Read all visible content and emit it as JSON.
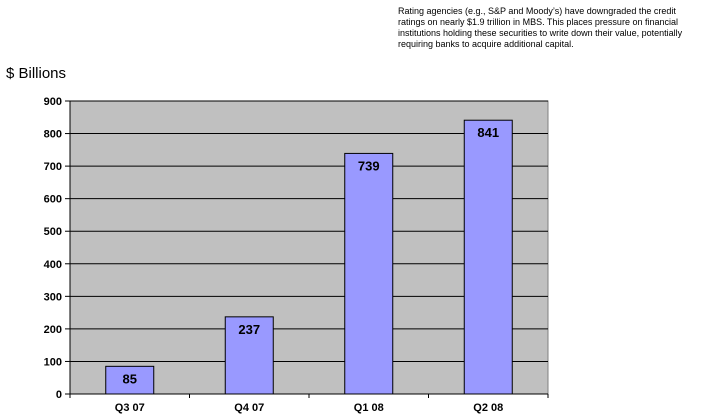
{
  "annotation": "Rating agencies (e.g., S&P and Moody’s) have downgraded the credit ratings on nearly $1.9 trillion in MBS.  This places pressure on financial institutions holding these securities to write down their value, potentially requiring banks to acquire additional capital.",
  "colors": {
    "plot_bg": "#c0c0c0",
    "bar_fill": "#9999ff",
    "bar_stroke": "#000000",
    "grid": "#000000"
  },
  "chart_data": {
    "type": "bar",
    "title": "",
    "xlabel": "",
    "ylabel": "$ Billions",
    "categories": [
      "Q3 07",
      "Q4 07",
      "Q1 08",
      "Q2 08"
    ],
    "values": [
      85,
      237,
      739,
      841
    ],
    "data_labels": [
      "85",
      "237",
      "739",
      "841"
    ],
    "ylim": [
      0,
      900
    ],
    "yticks": [
      0,
      100,
      200,
      300,
      400,
      500,
      600,
      700,
      800,
      900
    ],
    "grid": true,
    "legend": "none"
  }
}
